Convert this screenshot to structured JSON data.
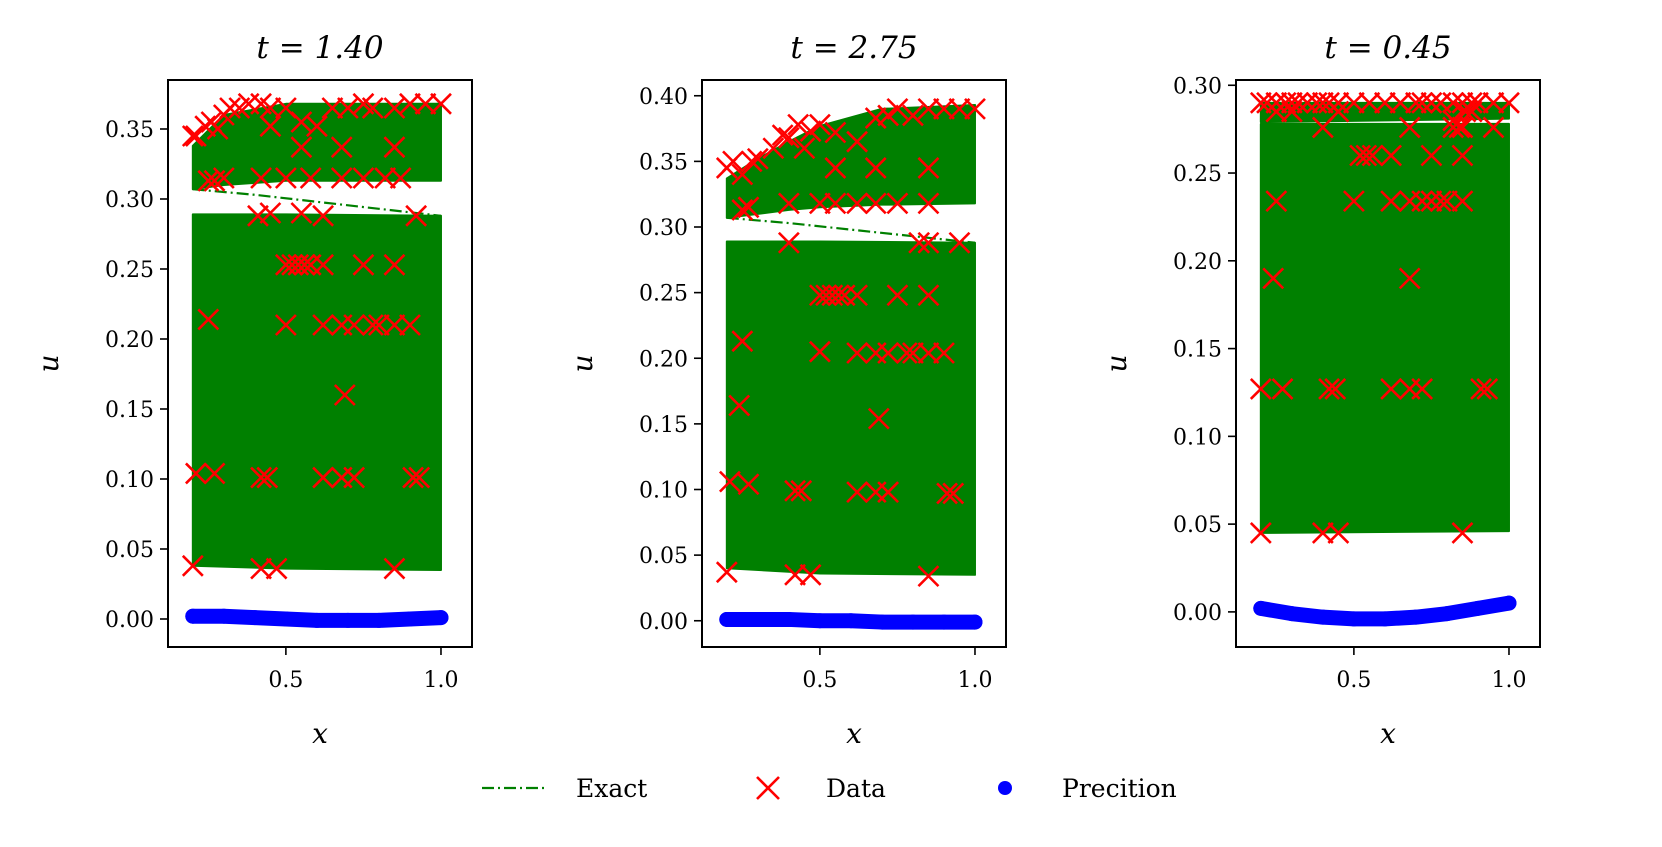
{
  "chart_data": [
    {
      "type": "scatter",
      "title": "t = 1.40",
      "xlabel": "x",
      "ylabel": "u",
      "xlim": [
        0.12,
        1.1
      ],
      "ylim": [
        -0.02,
        0.385
      ],
      "xticks": [
        {
          "v": 0.5,
          "label": "0.5"
        },
        {
          "v": 1.0,
          "label": "1.0"
        }
      ],
      "yticks": [
        {
          "v": 0.0,
          "label": "0.00"
        },
        {
          "v": 0.05,
          "label": "0.05"
        },
        {
          "v": 0.1,
          "label": "0.10"
        },
        {
          "v": 0.15,
          "label": "0.15"
        },
        {
          "v": 0.2,
          "label": "0.20"
        },
        {
          "v": 0.25,
          "label": "0.25"
        },
        {
          "v": 0.3,
          "label": "0.30"
        },
        {
          "v": 0.35,
          "label": "0.35"
        }
      ],
      "exact": {
        "x": [
          0.2,
          0.4,
          0.6,
          0.8,
          1.0
        ],
        "y": [
          0.307,
          0.303,
          0.298,
          0.293,
          0.288
        ]
      },
      "bands": [
        {
          "xs": [
            0.2,
            0.3,
            0.5,
            0.7,
            1.0
          ],
          "top": [
            0.338,
            0.36,
            0.368,
            0.368,
            0.368
          ],
          "bottom": [
            0.307,
            0.31,
            0.313,
            0.313,
            0.313
          ]
        },
        {
          "xs": [
            0.2,
            0.5,
            1.0
          ],
          "top": [
            0.289,
            0.289,
            0.288
          ],
          "bottom": [
            0.038,
            0.036,
            0.035
          ]
        }
      ],
      "series": [
        {
          "name": "Data",
          "x": [
            0.2,
            0.21,
            0.24,
            0.26,
            0.28,
            0.3,
            0.32,
            0.35,
            0.38,
            0.42,
            0.45,
            0.5,
            0.55,
            0.6,
            0.65,
            0.7,
            0.75,
            0.78,
            0.85,
            0.9,
            0.95,
            1.0,
            0.25,
            0.3,
            0.45,
            0.55,
            0.68,
            0.85,
            0.27,
            0.42,
            0.5,
            0.58,
            0.68,
            0.75,
            0.82,
            0.87,
            0.92,
            0.5,
            0.52,
            0.54,
            0.56,
            0.58,
            0.62,
            0.75,
            0.85,
            0.5,
            0.62,
            0.68,
            0.72,
            0.78,
            0.8,
            0.85,
            0.9,
            0.25,
            0.69,
            0.21,
            0.27,
            0.42,
            0.44,
            0.62,
            0.68,
            0.72,
            0.91,
            0.93,
            0.2,
            0.42,
            0.47,
            0.85,
            0.41,
            0.45,
            0.55,
            0.62
          ],
          "y": [
            0.345,
            0.345,
            0.352,
            0.355,
            0.35,
            0.36,
            0.365,
            0.365,
            0.368,
            0.368,
            0.365,
            0.365,
            0.355,
            0.352,
            0.365,
            0.365,
            0.368,
            0.365,
            0.365,
            0.368,
            0.368,
            0.368,
            0.313,
            0.315,
            0.352,
            0.337,
            0.337,
            0.337,
            0.313,
            0.315,
            0.315,
            0.315,
            0.315,
            0.315,
            0.315,
            0.315,
            0.288,
            0.253,
            0.253,
            0.253,
            0.253,
            0.253,
            0.253,
            0.253,
            0.253,
            0.21,
            0.21,
            0.21,
            0.21,
            0.21,
            0.21,
            0.21,
            0.21,
            0.214,
            0.16,
            0.104,
            0.104,
            0.101,
            0.101,
            0.101,
            0.101,
            0.101,
            0.101,
            0.101,
            0.038,
            0.036,
            0.036,
            0.036,
            0.288,
            0.29,
            0.29,
            0.288
          ]
        },
        {
          "name": "Precition",
          "x": [
            0.2,
            0.3,
            0.4,
            0.5,
            0.6,
            0.7,
            0.8,
            0.9,
            1.0
          ],
          "y": [
            0.002,
            0.002,
            0.001,
            0.0,
            -0.001,
            -0.001,
            -0.001,
            0.0,
            0.001
          ]
        }
      ]
    },
    {
      "type": "scatter",
      "title": "t = 2.75",
      "xlabel": "x",
      "ylabel": "u",
      "xlim": [
        0.12,
        1.1
      ],
      "ylim": [
        -0.02,
        0.412
      ],
      "xticks": [
        {
          "v": 0.5,
          "label": "0.5"
        },
        {
          "v": 1.0,
          "label": "1.0"
        }
      ],
      "yticks": [
        {
          "v": 0.0,
          "label": "0.00"
        },
        {
          "v": 0.05,
          "label": "0.05"
        },
        {
          "v": 0.1,
          "label": "0.10"
        },
        {
          "v": 0.15,
          "label": "0.15"
        },
        {
          "v": 0.2,
          "label": "0.20"
        },
        {
          "v": 0.25,
          "label": "0.25"
        },
        {
          "v": 0.3,
          "label": "0.30"
        },
        {
          "v": 0.35,
          "label": "0.35"
        },
        {
          "v": 0.4,
          "label": "0.40"
        }
      ],
      "exact": {
        "x": [
          0.2,
          0.4,
          0.6,
          0.8,
          1.0
        ],
        "y": [
          0.307,
          0.303,
          0.298,
          0.293,
          0.288
        ]
      },
      "bands": [
        {
          "xs": [
            0.2,
            0.3,
            0.4,
            0.5,
            0.7,
            1.0
          ],
          "top": [
            0.337,
            0.352,
            0.365,
            0.377,
            0.39,
            0.393
          ],
          "bottom": [
            0.307,
            0.31,
            0.313,
            0.315,
            0.317,
            0.318
          ]
        },
        {
          "xs": [
            0.2,
            0.5,
            1.0
          ],
          "top": [
            0.289,
            0.289,
            0.288
          ],
          "bottom": [
            0.04,
            0.036,
            0.035
          ]
        }
      ],
      "series": [
        {
          "name": "Data",
          "x": [
            0.2,
            0.22,
            0.25,
            0.28,
            0.3,
            0.35,
            0.38,
            0.4,
            0.43,
            0.47,
            0.5,
            0.55,
            0.62,
            0.68,
            0.72,
            0.75,
            0.8,
            0.85,
            0.9,
            0.95,
            1.0,
            0.25,
            0.27,
            0.4,
            0.45,
            0.5,
            0.55,
            0.62,
            0.68,
            0.75,
            0.85,
            0.55,
            0.68,
            0.85,
            0.4,
            0.82,
            0.85,
            0.95,
            0.5,
            0.52,
            0.54,
            0.56,
            0.58,
            0.62,
            0.75,
            0.85,
            0.5,
            0.62,
            0.68,
            0.72,
            0.78,
            0.8,
            0.85,
            0.9,
            0.25,
            0.24,
            0.69,
            0.21,
            0.27,
            0.42,
            0.44,
            0.62,
            0.68,
            0.72,
            0.91,
            0.93,
            0.2,
            0.42,
            0.47,
            0.85
          ],
          "y": [
            0.345,
            0.35,
            0.34,
            0.35,
            0.352,
            0.36,
            0.37,
            0.368,
            0.378,
            0.373,
            0.378,
            0.372,
            0.365,
            0.383,
            0.385,
            0.39,
            0.385,
            0.39,
            0.39,
            0.39,
            0.39,
            0.313,
            0.315,
            0.318,
            0.36,
            0.318,
            0.345,
            0.318,
            0.345,
            0.318,
            0.345,
            0.318,
            0.318,
            0.318,
            0.288,
            0.288,
            0.288,
            0.288,
            0.248,
            0.248,
            0.248,
            0.248,
            0.248,
            0.248,
            0.248,
            0.248,
            0.205,
            0.204,
            0.204,
            0.204,
            0.204,
            0.204,
            0.204,
            0.204,
            0.213,
            0.164,
            0.154,
            0.106,
            0.104,
            0.099,
            0.099,
            0.098,
            0.098,
            0.098,
            0.097,
            0.097,
            0.037,
            0.035,
            0.035,
            0.034
          ]
        },
        {
          "name": "Precition",
          "x": [
            0.2,
            0.3,
            0.4,
            0.5,
            0.6,
            0.7,
            0.8,
            0.9,
            1.0
          ],
          "y": [
            0.001,
            0.001,
            0.001,
            0.0,
            0.0,
            -0.001,
            -0.001,
            -0.001,
            -0.001
          ]
        }
      ]
    },
    {
      "type": "scatter",
      "title": "t = 0.45",
      "xlabel": "x",
      "ylabel": "u",
      "xlim": [
        0.12,
        1.1
      ],
      "ylim": [
        -0.02,
        0.303
      ],
      "xticks": [
        {
          "v": 0.5,
          "label": "0.5"
        },
        {
          "v": 1.0,
          "label": "1.0"
        }
      ],
      "yticks": [
        {
          "v": 0.0,
          "label": "0.00"
        },
        {
          "v": 0.05,
          "label": "0.05"
        },
        {
          "v": 0.1,
          "label": "0.10"
        },
        {
          "v": 0.15,
          "label": "0.15"
        },
        {
          "v": 0.2,
          "label": "0.20"
        },
        {
          "v": 0.25,
          "label": "0.25"
        },
        {
          "v": 0.3,
          "label": "0.30"
        }
      ],
      "exact": {
        "x": [
          0.2,
          0.4,
          0.6,
          0.8,
          1.0
        ],
        "y": [
          0.289,
          0.288,
          0.285,
          0.283,
          0.283
        ]
      },
      "bands": [
        {
          "xs": [
            0.2,
            1.0
          ],
          "top": [
            0.29,
            0.29
          ],
          "bottom": [
            0.279,
            0.281
          ]
        },
        {
          "xs": [
            0.2,
            1.0
          ],
          "top": [
            0.278,
            0.278
          ],
          "bottom": [
            0.045,
            0.046
          ]
        }
      ],
      "series": [
        {
          "name": "Data",
          "x": [
            0.2,
            0.22,
            0.25,
            0.28,
            0.3,
            0.32,
            0.35,
            0.38,
            0.4,
            0.42,
            0.45,
            0.5,
            0.55,
            0.6,
            0.65,
            0.7,
            0.72,
            0.75,
            0.78,
            0.82,
            0.85,
            0.88,
            0.9,
            0.95,
            1.0,
            0.25,
            0.3,
            0.4,
            0.45,
            0.68,
            0.82,
            0.85,
            0.95,
            0.52,
            0.54,
            0.56,
            0.62,
            0.75,
            0.85,
            0.82,
            0.84,
            0.86,
            0.88,
            0.25,
            0.5,
            0.62,
            0.68,
            0.72,
            0.75,
            0.78,
            0.8,
            0.85,
            0.24,
            0.68,
            0.2,
            0.27,
            0.42,
            0.44,
            0.62,
            0.68,
            0.72,
            0.91,
            0.93,
            0.2,
            0.4,
            0.45,
            0.85
          ],
          "y": [
            0.29,
            0.29,
            0.29,
            0.29,
            0.29,
            0.29,
            0.29,
            0.29,
            0.29,
            0.29,
            0.29,
            0.29,
            0.29,
            0.29,
            0.29,
            0.29,
            0.29,
            0.29,
            0.29,
            0.29,
            0.29,
            0.29,
            0.29,
            0.29,
            0.29,
            0.285,
            0.285,
            0.276,
            0.285,
            0.276,
            0.28,
            0.276,
            0.276,
            0.26,
            0.26,
            0.26,
            0.26,
            0.26,
            0.26,
            0.276,
            0.276,
            0.285,
            0.285,
            0.234,
            0.234,
            0.234,
            0.234,
            0.234,
            0.234,
            0.234,
            0.234,
            0.234,
            0.19,
            0.19,
            0.127,
            0.127,
            0.127,
            0.127,
            0.127,
            0.127,
            0.127,
            0.127,
            0.127,
            0.045,
            0.045,
            0.045,
            0.045
          ]
        },
        {
          "name": "Precition",
          "x": [
            0.2,
            0.3,
            0.4,
            0.5,
            0.6,
            0.7,
            0.8,
            0.9,
            1.0
          ],
          "y": [
            0.002,
            -0.001,
            -0.003,
            -0.004,
            -0.004,
            -0.003,
            -0.001,
            0.002,
            0.005
          ]
        }
      ]
    }
  ],
  "legend": [
    {
      "label": "Exact",
      "color": "#008000",
      "marker": "dashdot-line"
    },
    {
      "label": "Data",
      "color": "#ff0000",
      "marker": "x"
    },
    {
      "label": "Precition",
      "color": "#0000ff",
      "marker": "dot"
    }
  ],
  "colors": {
    "band": "#008000",
    "data": "#ff0000",
    "prediction": "#0000ff",
    "exact": "#008000"
  }
}
